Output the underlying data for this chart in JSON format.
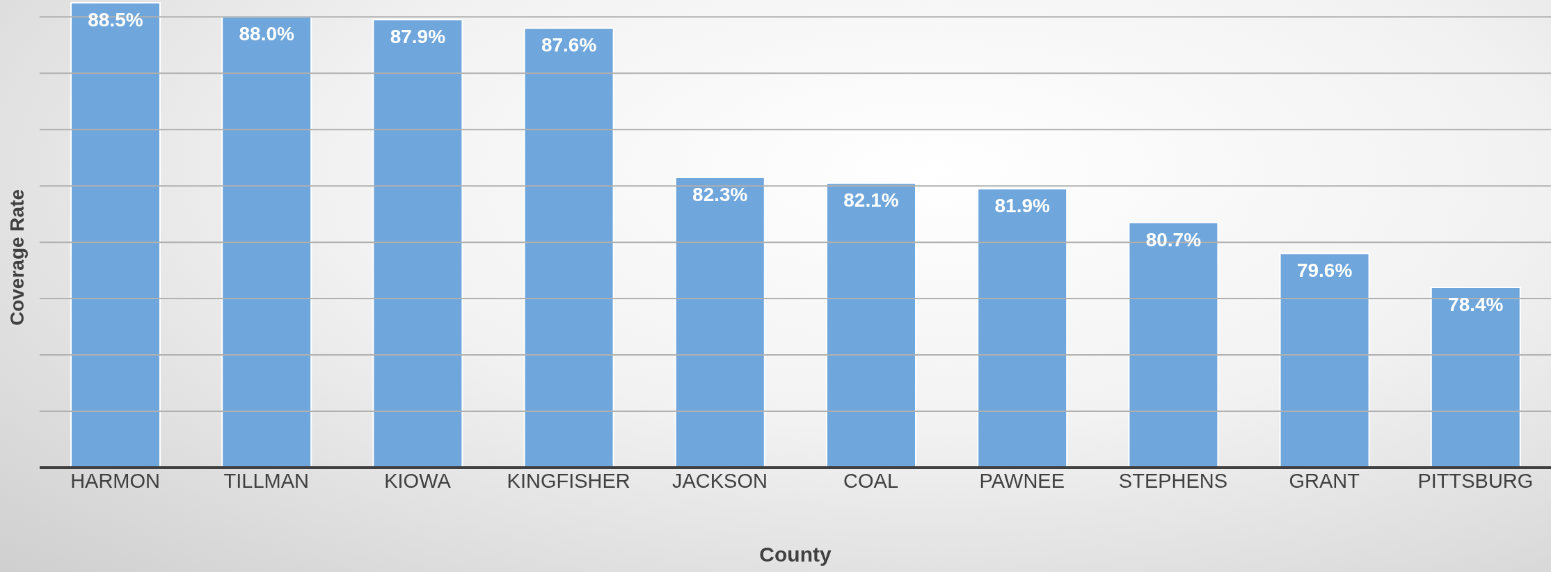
{
  "chart_data": {
    "type": "bar",
    "xlabel": "County",
    "ylabel": "Coverage Rate",
    "categories": [
      "HARMON",
      "TILLMAN",
      "KIOWA",
      "KINGFISHER",
      "JACKSON",
      "COAL",
      "PAWNEE",
      "STEPHENS",
      "GRANT",
      "PITTSBURG"
    ],
    "values": [
      88.5,
      88.0,
      87.9,
      87.6,
      82.3,
      82.1,
      81.9,
      80.7,
      79.6,
      78.4
    ],
    "value_labels": [
      "88.5%",
      "88.0%",
      "87.9%",
      "87.6%",
      "82.3%",
      "82.1%",
      "81.9%",
      "80.7%",
      "79.6%",
      "78.4%"
    ],
    "color": "#6fa6db",
    "ylim": [
      72,
      88.6
    ],
    "yticks": [
      {
        "value": 72,
        "label": null
      },
      {
        "value": 74,
        "label": null
      },
      {
        "value": 76,
        "label": null
      },
      {
        "value": 78,
        "label": null
      },
      {
        "value": 80,
        "label": null
      },
      {
        "value": 82,
        "label": null
      },
      {
        "value": 84,
        "label": null
      },
      {
        "value": 86,
        "label": null
      },
      {
        "value": 88,
        "label": null
      }
    ],
    "grid": "y",
    "tick_labels": "x"
  }
}
